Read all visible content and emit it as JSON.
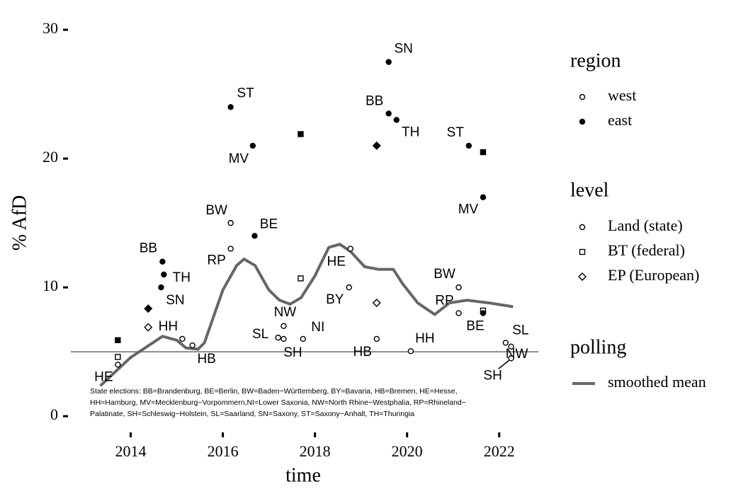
{
  "chart_data": {
    "type": "scatter",
    "xlabel": "time",
    "ylabel": "% AfD",
    "xlim": [
      2012.7,
      2022.85
    ],
    "ylim": [
      -1.75,
      30.5
    ],
    "xticks": [
      2014,
      2016,
      2018,
      2020,
      2022
    ],
    "yticks": [
      0,
      10,
      20,
      30
    ],
    "grid": false,
    "reference_line": 5,
    "reference_color": "#8c8c8c",
    "points": [
      {
        "x": 2013.72,
        "y": 4.0,
        "region": "west",
        "level": "land",
        "label": "HE"
      },
      {
        "x": 2013.72,
        "y": 4.6,
        "region": "west",
        "level": "bt",
        "label": null
      },
      {
        "x": 2013.72,
        "y": 5.9,
        "region": "east",
        "level": "bt",
        "label": null
      },
      {
        "x": 2014.38,
        "y": 8.35,
        "region": "east",
        "level": "ep",
        "label": null
      },
      {
        "x": 2014.38,
        "y": 6.9,
        "region": "west",
        "level": "ep",
        "label": null
      },
      {
        "x": 2014.66,
        "y": 10.0,
        "region": "east",
        "level": "land",
        "label": "SN"
      },
      {
        "x": 2014.69,
        "y": 12.0,
        "region": "east",
        "level": "land",
        "label": "BB"
      },
      {
        "x": 2014.72,
        "y": 11.0,
        "region": "east",
        "level": "land",
        "label": "TH"
      },
      {
        "x": 2015.12,
        "y": 6.0,
        "region": "west",
        "level": "land",
        "label": "HH"
      },
      {
        "x": 2015.34,
        "y": 5.5,
        "region": "west",
        "level": "land",
        "label": "HB"
      },
      {
        "x": 2016.17,
        "y": 15.0,
        "region": "west",
        "level": "land",
        "label": "BW"
      },
      {
        "x": 2016.17,
        "y": 13.0,
        "region": "west",
        "level": "land",
        "label": "RP"
      },
      {
        "x": 2016.17,
        "y": 24.0,
        "region": "east",
        "level": "land",
        "label": "ST"
      },
      {
        "x": 2016.65,
        "y": 21.0,
        "region": "east",
        "level": "land",
        "label": "MV"
      },
      {
        "x": 2016.69,
        "y": 14.0,
        "region": "east",
        "level": "land",
        "label": "BE"
      },
      {
        "x": 2017.2,
        "y": 6.1,
        "region": "west",
        "level": "land",
        "label": "SL"
      },
      {
        "x": 2017.32,
        "y": 6.0,
        "region": "west",
        "level": "land",
        "label": "SH"
      },
      {
        "x": 2017.32,
        "y": 7.0,
        "region": "west",
        "level": "land",
        "label": "NW"
      },
      {
        "x": 2017.69,
        "y": 10.7,
        "region": "west",
        "level": "bt",
        "label": null
      },
      {
        "x": 2017.69,
        "y": 21.9,
        "region": "east",
        "level": "bt",
        "label": null
      },
      {
        "x": 2017.74,
        "y": 6.0,
        "region": "west",
        "level": "land",
        "label": "NI"
      },
      {
        "x": 2018.74,
        "y": 10.0,
        "region": "west",
        "level": "land",
        "label": "BY"
      },
      {
        "x": 2018.77,
        "y": 13.0,
        "region": "west",
        "level": "land",
        "label": "HE"
      },
      {
        "x": 2019.34,
        "y": 21.0,
        "region": "east",
        "level": "ep",
        "label": null
      },
      {
        "x": 2019.34,
        "y": 8.8,
        "region": "west",
        "level": "ep",
        "label": null
      },
      {
        "x": 2019.34,
        "y": 6.0,
        "region": "west",
        "level": "land",
        "label": "HB"
      },
      {
        "x": 2019.6,
        "y": 27.5,
        "region": "east",
        "level": "land",
        "label": "SN"
      },
      {
        "x": 2019.6,
        "y": 23.5,
        "region": "east",
        "level": "land",
        "label": "BB"
      },
      {
        "x": 2019.77,
        "y": 23.0,
        "region": "east",
        "level": "land",
        "label": "TH"
      },
      {
        "x": 2020.08,
        "y": 5.05,
        "region": "west",
        "level": "land",
        "label": "HH"
      },
      {
        "x": 2021.12,
        "y": 10.0,
        "region": "west",
        "level": "land",
        "label": "BW"
      },
      {
        "x": 2021.12,
        "y": 8.0,
        "region": "west",
        "level": "land",
        "label": "RP"
      },
      {
        "x": 2021.34,
        "y": 21.0,
        "region": "east",
        "level": "land",
        "label": "ST"
      },
      {
        "x": 2021.65,
        "y": 8.2,
        "region": "west",
        "level": "bt",
        "label": null
      },
      {
        "x": 2021.65,
        "y": 20.5,
        "region": "east",
        "level": "bt",
        "label": null
      },
      {
        "x": 2021.65,
        "y": 17.0,
        "region": "east",
        "level": "land",
        "label": "MV"
      },
      {
        "x": 2021.65,
        "y": 8.0,
        "region": "east",
        "level": "land",
        "label": "BE"
      },
      {
        "x": 2022.14,
        "y": 5.7,
        "region": "west",
        "level": "land",
        "label": "SL"
      },
      {
        "x": 2022.26,
        "y": 5.4,
        "region": "west",
        "level": "land",
        "label": "NW"
      },
      {
        "x": 2022.26,
        "y": 4.5,
        "region": "west",
        "level": "land",
        "label": "SH"
      }
    ],
    "polling": {
      "name": "smoothed mean",
      "color": "#666666",
      "x": [
        2013.34,
        2014,
        2014.69,
        2015,
        2015.2,
        2015.46,
        2015.6,
        2016,
        2016.3,
        2016.46,
        2016.7,
        2017,
        2017.23,
        2017.46,
        2017.7,
        2018,
        2018.3,
        2018.54,
        2018.77,
        2019.08,
        2019.38,
        2019.7,
        2019.9,
        2020.23,
        2020.6,
        2020.92,
        2021.3,
        2021.77,
        2022.3
      ],
      "values": [
        2.36,
        4.56,
        6.2,
        5.9,
        5.3,
        5.2,
        5.7,
        9.8,
        11.7,
        12.2,
        11.7,
        9.8,
        9.0,
        8.7,
        9.2,
        10.9,
        13.1,
        13.35,
        12.8,
        11.6,
        11.4,
        11.4,
        10.3,
        8.8,
        7.9,
        8.8,
        9.0,
        8.8,
        8.5
      ]
    },
    "legend": {
      "region": {
        "title": "region",
        "items": [
          {
            "key": "west",
            "label": "west"
          },
          {
            "key": "east",
            "label": "east"
          }
        ]
      },
      "level": {
        "title": "level",
        "items": [
          {
            "key": "land",
            "label": "Land (state)"
          },
          {
            "key": "bt",
            "label": "BT (federal)"
          },
          {
            "key": "ep",
            "label": "EP (European)"
          }
        ]
      },
      "polling": {
        "title": "polling"
      }
    },
    "note": [
      "State elections: BB=Brandenburg, BE=Berlin, BW=Baden−Württemberg, BY=Bavaria, HB=Bremen, HE=Hesse,",
      "HH=Hamburg, MV=Mecklenburg−Vorpommern,NI=Lower Saxonia, NW=North Rhine−Westphalia, RP=Rhineland−",
      "Palatinate, SH=Schleswig−Holstein, SL=Saarland, SN=Saxony, ST=Saxony−Anhalt, TH=Thuringia"
    ]
  }
}
